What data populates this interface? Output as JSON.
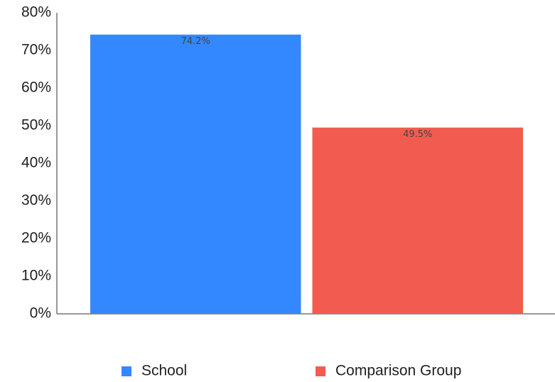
{
  "chart_data": {
    "type": "bar",
    "categories": [
      null
    ],
    "series": [
      {
        "name": "School",
        "color": "#3388ff",
        "values": [
          74.2
        ],
        "value_labels": [
          "74.2%"
        ]
      },
      {
        "name": "Comparison Group",
        "color": "#f25c50",
        "values": [
          49.5
        ],
        "value_labels": [
          "49.5%"
        ]
      }
    ],
    "ylim": [
      0,
      80
    ],
    "yticks": [
      {
        "value": 0,
        "label": "0%"
      },
      {
        "value": 10,
        "label": "10%"
      },
      {
        "value": 20,
        "label": "20%"
      },
      {
        "value": 30,
        "label": "30%"
      },
      {
        "value": 40,
        "label": "40%"
      },
      {
        "value": 50,
        "label": "50%"
      },
      {
        "value": 60,
        "label": "60%"
      },
      {
        "value": 70,
        "label": "70%"
      },
      {
        "value": 80,
        "label": "80%"
      }
    ],
    "grid": false,
    "legend": "bottom"
  }
}
